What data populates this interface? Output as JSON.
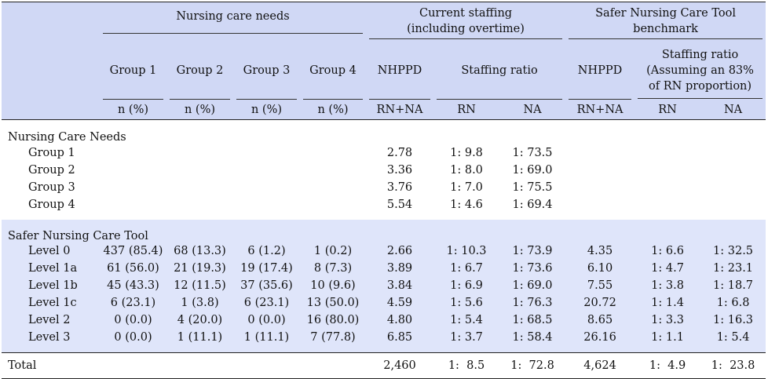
{
  "header": {
    "nursing_care_needs": "Nursing care needs",
    "current_staffing_line1": "Current staffing",
    "current_staffing_line2": "(including overtime)",
    "sntc_line1": "Safer Nursing Care Tool",
    "sntc_line2": "benchmark",
    "groups": [
      "Group 1",
      "Group 2",
      "Group 3",
      "Group 4"
    ],
    "nhppd": "NHPPD",
    "staffing_ratio": "Staffing ratio",
    "staffing_ratio_note1": "Staffing ratio",
    "staffing_ratio_note2": "(Assuming an 83%",
    "staffing_ratio_note3": "of RN proportion)",
    "n_pct": "n (%)",
    "rn_na": "RN+NA",
    "rn": "RN",
    "na": "NA"
  },
  "section1": {
    "title": "Nursing Care Needs",
    "rows": [
      {
        "label": "Group 1",
        "nhppd": "2.78",
        "rn": "1: 9.8",
        "na": "1: 73.5"
      },
      {
        "label": "Group 2",
        "nhppd": "3.36",
        "rn": "1: 8.0",
        "na": "1: 69.0"
      },
      {
        "label": "Group 3",
        "nhppd": "3.76",
        "rn": "1: 7.0",
        "na": "1: 75.5"
      },
      {
        "label": "Group 4",
        "nhppd": "5.54",
        "rn": "1: 4.6",
        "na": "1: 69.4"
      }
    ]
  },
  "section2": {
    "title": "Safer Nursing Care Tool",
    "rows": [
      {
        "label": "Level 0",
        "g1": "437 (85.4)",
        "g2": "68 (13.3)",
        "g3": "6 (1.2)",
        "g4": "1 (0.2)",
        "nhppd": "2.66",
        "rn": "1: 10.3",
        "na": "1: 73.9",
        "b_nhppd": "4.35",
        "b_rn": "1: 6.6",
        "b_na": "1: 32.5"
      },
      {
        "label": "Level 1a",
        "g1": "61 (56.0)",
        "g2": "21 (19.3)",
        "g3": "19 (17.4)",
        "g4": "8 (7.3)",
        "nhppd": "3.89",
        "rn": "1: 6.7",
        "na": "1: 73.6",
        "b_nhppd": "6.10",
        "b_rn": "1: 4.7",
        "b_na": "1: 23.1"
      },
      {
        "label": "Level 1b",
        "g1": "45 (43.3)",
        "g2": "12 (11.5)",
        "g3": "37 (35.6)",
        "g4": "10 (9.6)",
        "nhppd": "3.84",
        "rn": "1: 6.9",
        "na": "1: 69.0",
        "b_nhppd": "7.55",
        "b_rn": "1: 3.8",
        "b_na": "1: 18.7"
      },
      {
        "label": "Level 1c",
        "g1": "6 (23.1)",
        "g2": "1 (3.8)",
        "g3": "6 (23.1)",
        "g4": "13 (50.0)",
        "nhppd": "4.59",
        "rn": "1: 5.6",
        "na": "1: 76.3",
        "b_nhppd": "20.72",
        "b_rn": "1: 1.4",
        "b_na": "1: 6.8"
      },
      {
        "label": "Level 2",
        "g1": "0 (0.0)",
        "g2": "4 (20.0)",
        "g3": "0 (0.0)",
        "g4": "16 (80.0)",
        "nhppd": "4.80",
        "rn": "1: 5.4",
        "na": "1: 68.5",
        "b_nhppd": "8.65",
        "b_rn": "1: 3.3",
        "b_na": "1: 16.3"
      },
      {
        "label": "Level 3",
        "g1": "0 (0.0)",
        "g2": "1 (11.1)",
        "g3": "1 (11.1)",
        "g4": "7 (77.8)",
        "nhppd": "6.85",
        "rn": "1: 3.7",
        "na": "1: 58.4",
        "b_nhppd": "26.16",
        "b_rn": "1: 1.1",
        "b_na": "1: 5.4"
      }
    ]
  },
  "total": {
    "label": "Total",
    "nhppd": "2,460",
    "rn": "1:  8.5",
    "na": "1:  72.8",
    "b_nhppd": "4,624",
    "b_rn": "1:  4.9",
    "b_na": "1:  23.8"
  }
}
